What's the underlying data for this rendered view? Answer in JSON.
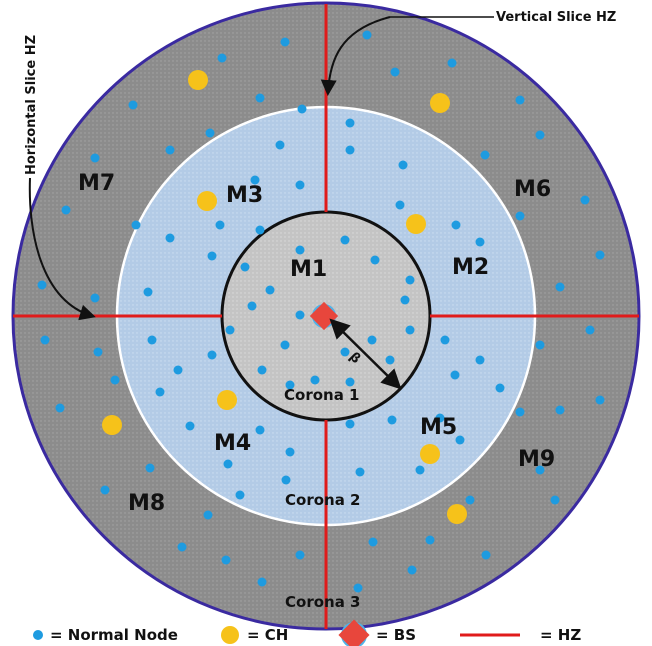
{
  "diagram": {
    "zones": [
      "M1",
      "M2",
      "M3",
      "M4",
      "M5",
      "M6",
      "M7",
      "M8",
      "M9"
    ],
    "coronas": [
      "Corona 1",
      "Corona 2",
      "Corona 3"
    ],
    "annotations": {
      "vertical": "Vertical Slice HZ",
      "horizontal": "Horizontal Slice HZ",
      "radius_symbol": "β"
    },
    "legend": [
      {
        "symbol": "normal-node",
        "label": "= Normal Node"
      },
      {
        "symbol": "ch",
        "label": "= CH"
      },
      {
        "symbol": "bs",
        "label": "= BS"
      },
      {
        "symbol": "hz",
        "label": "= HZ"
      }
    ],
    "colors": {
      "outer_ring": "#8f8f8f",
      "middle_ring": "#b7cfe8",
      "inner_core": "#c9c9c9",
      "outline_outer": "#3a2aa0",
      "node": "#1e9be0",
      "ch": "#f6c21a",
      "bs": "#e8463c",
      "hz_line": "#e01b1b"
    }
  }
}
